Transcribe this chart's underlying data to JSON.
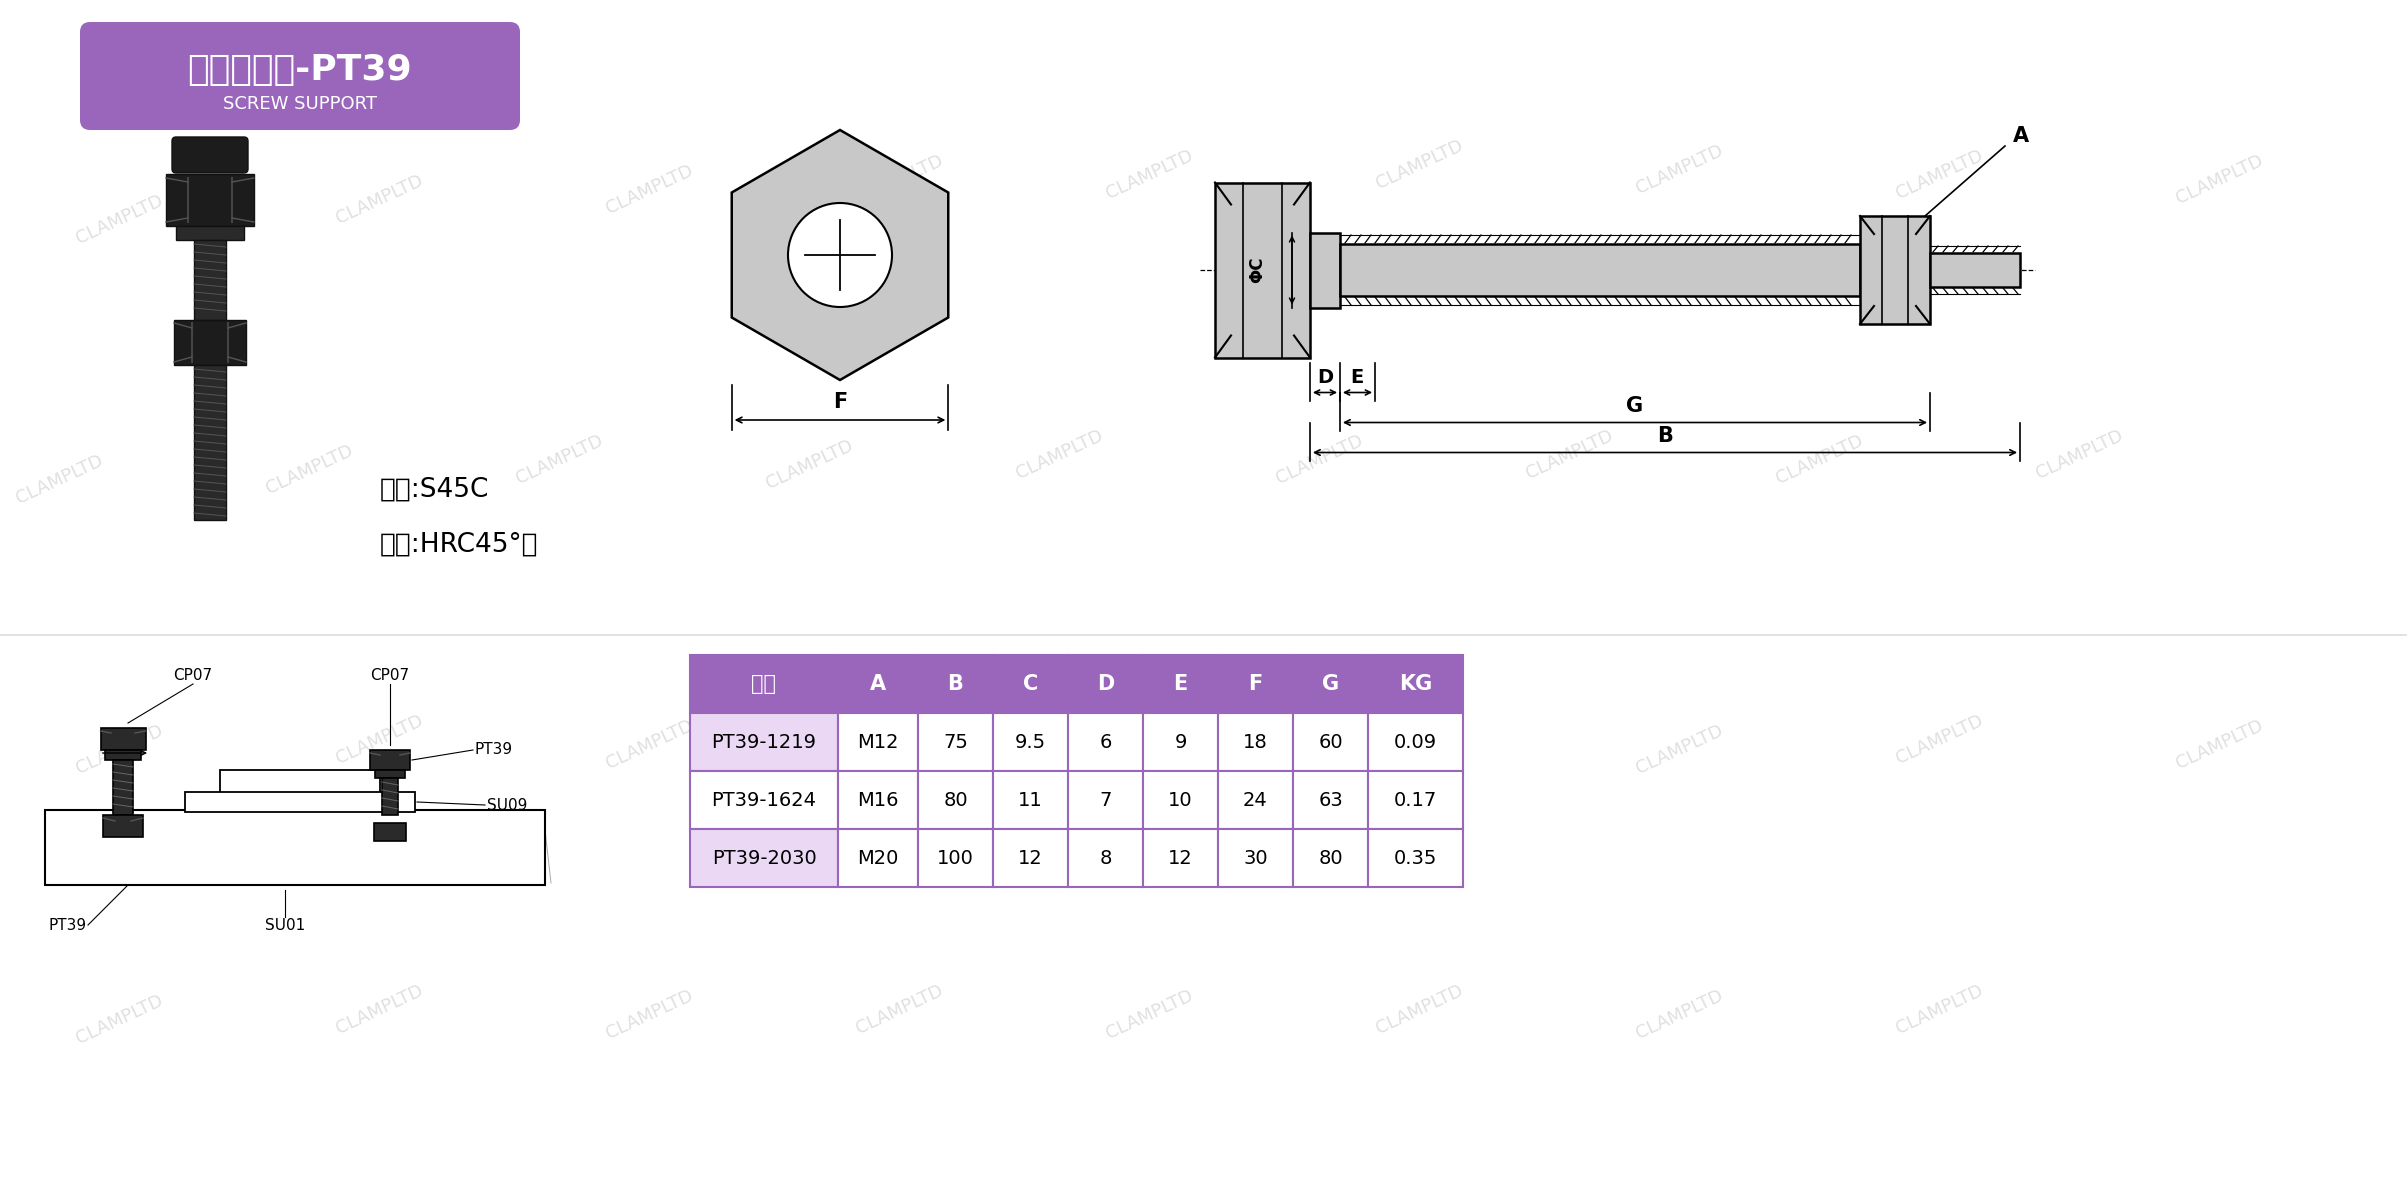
{
  "title_chinese": "螺杆支撑件",
  "title_code": "-PT39",
  "title_sub": "SCREW SUPPORT",
  "title_bg_color": "#9966BB",
  "title_text_color": "#FFFFFF",
  "watermark_text": "CLAMPLTD",
  "watermark_color": "#CCCCCC",
  "material_text": "材质:S45C",
  "hardness_text": "硬度:HRC45°，",
  "table_header_bg": "#9966BB",
  "table_header_text_color": "#FFFFFF",
  "table_row0_bg": "#EAD8F5",
  "table_row1_bg": "#FFFFFF",
  "table_border_color": "#9966BB",
  "table_columns": [
    "型号",
    "A",
    "B",
    "C",
    "D",
    "E",
    "F",
    "G",
    "KG"
  ],
  "table_rows": [
    [
      "PT39-1219",
      "M12",
      "75",
      "9.5",
      "6",
      "9",
      "18",
      "60",
      "0.09"
    ],
    [
      "PT39-1624",
      "M16",
      "80",
      "11",
      "7",
      "10",
      "24",
      "63",
      "0.17"
    ],
    [
      "PT39-2030",
      "M20",
      "100",
      "12",
      "8",
      "12",
      "30",
      "80",
      "0.35"
    ]
  ],
  "diagram_fill_color": "#C8C8C8",
  "bg_color": "#FFFFFF",
  "screw_color": "#1C1C1C",
  "screw_mid": "#3A3A3A"
}
